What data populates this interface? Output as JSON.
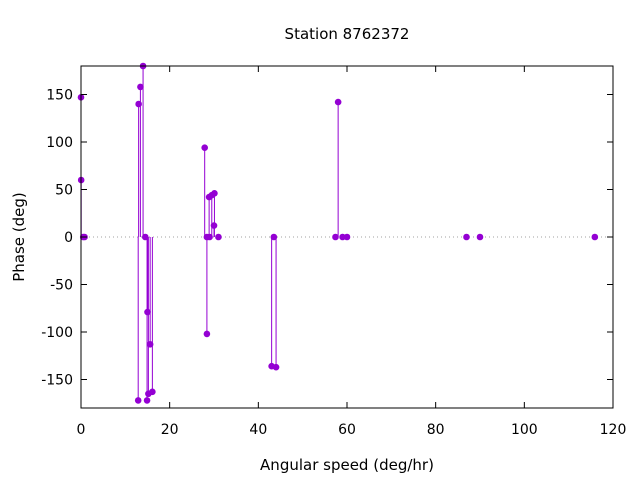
{
  "chart_data": {
    "type": "scatter",
    "title": "Station 8762372",
    "xlabel": "Angular speed (deg/hr)",
    "ylabel": "Phase (deg)",
    "xlim": [
      0,
      120
    ],
    "ylim": [
      -180,
      180
    ],
    "xticks": [
      0,
      20,
      40,
      60,
      80,
      100,
      120
    ],
    "yticks": [
      -150,
      -100,
      -50,
      0,
      50,
      100,
      150
    ],
    "grid": false,
    "zero_line": "dotted",
    "legend": "none",
    "style": "impulses with points",
    "color": "#9400d3",
    "x": [
      0.0,
      0.04,
      0.5,
      0.8,
      12.9,
      13.0,
      13.4,
      14.0,
      14.5,
      14.9,
      15.0,
      15.2,
      15.6,
      16.1,
      27.9,
      28.4,
      28.4,
      28.9,
      29.0,
      29.5,
      30.0,
      30.1,
      31.0,
      43.0,
      43.5,
      44.0,
      57.4,
      58.0,
      59.0,
      60.0,
      86.95,
      90.0,
      115.9
    ],
    "y": [
      147,
      60,
      0,
      0,
      -172,
      140,
      158,
      180,
      0,
      -172,
      -79,
      -165,
      -113,
      -163,
      94,
      0,
      -102,
      42,
      0,
      44,
      12,
      46,
      0,
      -136,
      0,
      -137,
      0,
      142,
      0,
      0,
      0,
      0,
      0
    ]
  }
}
